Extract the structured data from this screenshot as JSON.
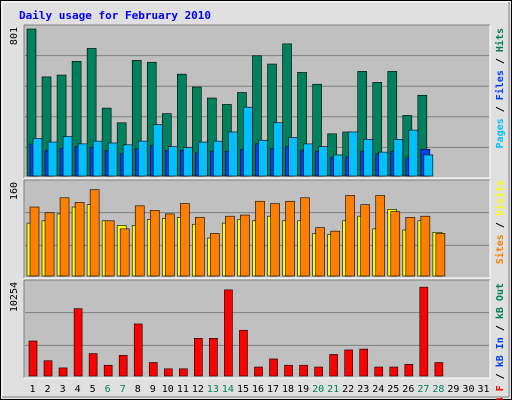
{
  "title": "Daily usage for February 2010",
  "colors": {
    "title": "#0000ff",
    "background": "#e0e0e0",
    "plot": "#c0c0c0",
    "hits": "#00805c",
    "files": "#0040ff",
    "pages": "#00c0ff",
    "visits": "#ffff00",
    "sites": "#ff8000",
    "kbin": "#0040ff",
    "kbout": "#00805c",
    "kbf": "#ff0000",
    "weekend": "#00805c",
    "weekday": "#000000"
  },
  "side_labels": {
    "top": [
      {
        "text": "Pages",
        "color": "#00c0ff"
      },
      {
        "text": " / ",
        "color": "#000000"
      },
      {
        "text": "Files",
        "color": "#0040ff"
      },
      {
        "text": " / ",
        "color": "#000000"
      },
      {
        "text": "Hits",
        "color": "#00805c"
      }
    ],
    "middle": [
      {
        "text": "Sites",
        "color": "#ff8000"
      },
      {
        "text": " / ",
        "color": "#000000"
      },
      {
        "text": "Visits",
        "color": "#ffff00"
      }
    ],
    "bottom": [
      {
        "text": "kB F",
        "color": "#ff0000"
      },
      {
        "text": " / ",
        "color": "#000000"
      },
      {
        "text": "kB In",
        "color": "#0040ff"
      },
      {
        "text": " / ",
        "color": "#000000"
      },
      {
        "text": "kB Out",
        "color": "#00805c"
      }
    ]
  },
  "chart_data": [
    {
      "type": "bar",
      "panel": "top",
      "ymax_label": "801",
      "ylim": [
        0,
        801
      ],
      "categories": [
        "1",
        "2",
        "3",
        "4",
        "5",
        "6",
        "7",
        "8",
        "9",
        "10",
        "11",
        "12",
        "13",
        "14",
        "15",
        "16",
        "17",
        "18",
        "19",
        "20",
        "21",
        "22",
        "23",
        "24",
        "25",
        "26",
        "27",
        "28",
        "29",
        "30",
        "31"
      ],
      "weekend_days": [
        "6",
        "7",
        "13",
        "14",
        "20",
        "21",
        "27",
        "28"
      ],
      "series": [
        {
          "name": "Hits",
          "color": "#00805c",
          "values": [
            801,
            540,
            550,
            625,
            695,
            370,
            290,
            630,
            620,
            340,
            555,
            485,
            425,
            390,
            455,
            655,
            610,
            720,
            565,
            500,
            230,
            240,
            570,
            510,
            570,
            330,
            440,
            0,
            0,
            0,
            0
          ]
        },
        {
          "name": "Files",
          "color": "#0040ff",
          "values": [
            175,
            140,
            150,
            160,
            155,
            140,
            120,
            150,
            165,
            140,
            140,
            125,
            135,
            135,
            145,
            175,
            150,
            160,
            140,
            135,
            100,
            105,
            135,
            120,
            135,
            100,
            145,
            0,
            0,
            0,
            0
          ]
        },
        {
          "name": "Pages",
          "color": "#00c0ff",
          "values": [
            205,
            185,
            215,
            175,
            190,
            180,
            170,
            190,
            280,
            160,
            155,
            185,
            190,
            240,
            375,
            195,
            290,
            210,
            175,
            160,
            115,
            240,
            200,
            130,
            200,
            250,
            115,
            0,
            0,
            0,
            0
          ]
        }
      ]
    },
    {
      "type": "bar",
      "panel": "middle",
      "ymax_label": "160",
      "ylim": [
        0,
        160
      ],
      "categories": [
        "1",
        "2",
        "3",
        "4",
        "5",
        "6",
        "7",
        "8",
        "9",
        "10",
        "11",
        "12",
        "13",
        "14",
        "15",
        "16",
        "17",
        "18",
        "19",
        "20",
        "21",
        "22",
        "23",
        "24",
        "25",
        "26",
        "27",
        "28",
        "29",
        "30",
        "31"
      ],
      "series": [
        {
          "name": "Visits",
          "color": "#ffff00",
          "values": [
            92,
            96,
            108,
            120,
            124,
            96,
            88,
            88,
            98,
            100,
            102,
            90,
            66,
            92,
            98,
            96,
            104,
            96,
            96,
            74,
            72,
            96,
            104,
            82,
            116,
            80,
            96,
            76,
            0,
            0,
            0
          ]
        },
        {
          "name": "Sites",
          "color": "#ff8000",
          "values": [
            120,
            110,
            136,
            128,
            150,
            96,
            82,
            122,
            114,
            108,
            126,
            102,
            74,
            104,
            106,
            130,
            126,
            130,
            136,
            84,
            78,
            140,
            124,
            140,
            112,
            102,
            104,
            74,
            0,
            0,
            0
          ]
        }
      ]
    },
    {
      "type": "bar",
      "panel": "bottom",
      "ymax_label": "10254",
      "ylim": [
        0,
        10254
      ],
      "categories": [
        "1",
        "2",
        "3",
        "4",
        "5",
        "6",
        "7",
        "8",
        "9",
        "10",
        "11",
        "12",
        "13",
        "14",
        "15",
        "16",
        "17",
        "18",
        "19",
        "20",
        "21",
        "22",
        "23",
        "24",
        "25",
        "26",
        "27",
        "28",
        "29",
        "30",
        "31"
      ],
      "series": [
        {
          "name": "kB F",
          "color": "#ff0000",
          "values": [
            3900,
            1700,
            900,
            7500,
            2500,
            1200,
            2300,
            5800,
            1500,
            800,
            800,
            4200,
            4200,
            9600,
            5100,
            1000,
            1900,
            1200,
            1200,
            1000,
            2400,
            2900,
            3000,
            1000,
            1000,
            1300,
            9900,
            1500,
            0,
            0,
            0
          ]
        }
      ]
    }
  ],
  "days": [
    "1",
    "2",
    "3",
    "4",
    "5",
    "6",
    "7",
    "8",
    "9",
    "10",
    "11",
    "12",
    "13",
    "14",
    "15",
    "16",
    "17",
    "18",
    "19",
    "20",
    "21",
    "22",
    "23",
    "24",
    "25",
    "26",
    "27",
    "28",
    "29",
    "30",
    "31"
  ]
}
